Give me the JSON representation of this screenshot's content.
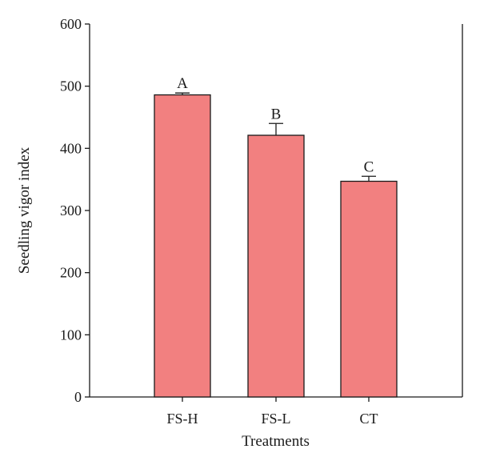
{
  "chart_data": {
    "type": "bar",
    "xlabel": "Treatments",
    "ylabel": "Seedling vigor index",
    "ylim": [
      0,
      600
    ],
    "yticks": [
      0,
      100,
      200,
      300,
      400,
      500,
      600
    ],
    "grid": false,
    "categories": [
      "FS-H",
      "FS-L",
      "CT"
    ],
    "values": [
      486,
      421,
      347
    ],
    "errors": [
      3,
      19,
      8
    ],
    "significance_labels": [
      "A",
      "B",
      "C"
    ],
    "bar_color": "#f28080",
    "bar_edge_color": "#1a1a1a"
  }
}
